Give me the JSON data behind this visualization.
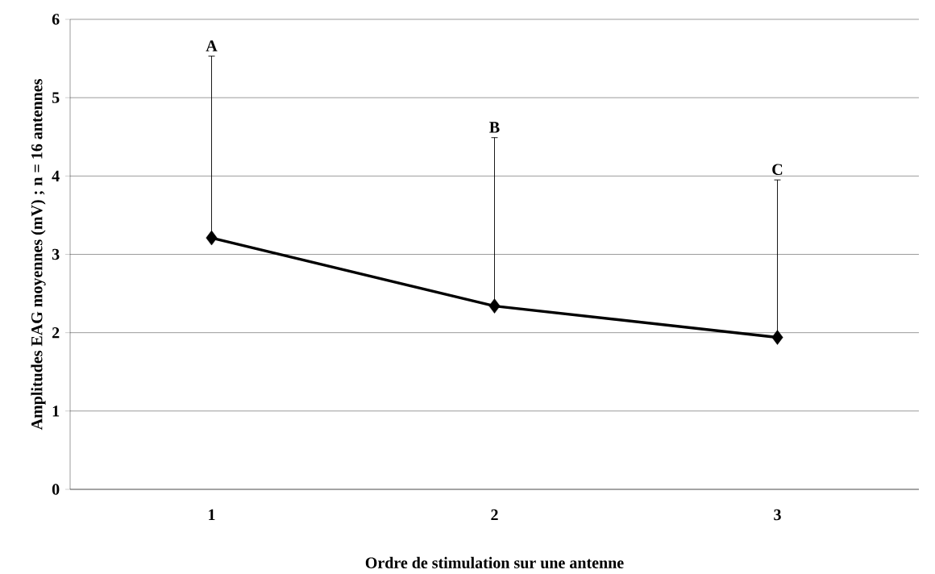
{
  "chart_data": {
    "type": "line",
    "xlabel": "Ordre de stimulation sur une antenne",
    "ylabel": "Amplitudes EAG moyennes (mV) ; n = 16 antennes",
    "categories": [
      "1",
      "2",
      "3"
    ],
    "series": [
      {
        "color": "#000000",
        "values": [
          3.21,
          2.34,
          1.94
        ],
        "errors": [
          [
            3.21,
            5.53
          ],
          [
            2.34,
            4.49
          ],
          [
            1.94,
            3.95
          ]
        ]
      }
    ],
    "ylim": [
      0,
      6
    ],
    "yticks": [
      0,
      1,
      2,
      3,
      4,
      5,
      6
    ],
    "grid": "y",
    "marker": "diamond",
    "line_style": "solid",
    "annotations": [
      {
        "text": "A",
        "x": "1",
        "y": 5.53
      },
      {
        "text": "B",
        "x": "2",
        "y": 4.49
      },
      {
        "text": "C",
        "x": "3",
        "y": 3.95
      }
    ]
  }
}
